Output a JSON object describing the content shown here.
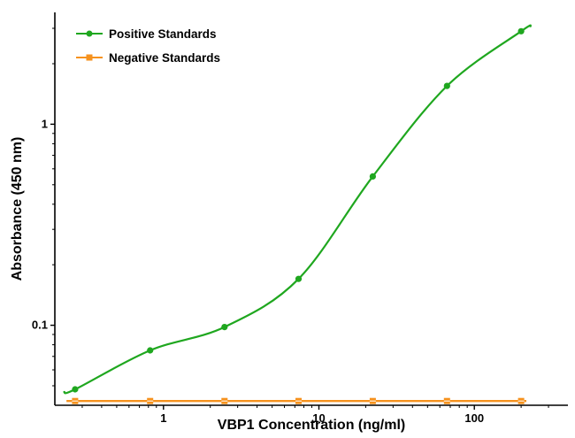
{
  "chart_data": {
    "type": "line",
    "title": "",
    "xlabel": "VBP1 Concentration (ng/ml)",
    "ylabel": "Absorbance (450 nm)",
    "x_scale": "log",
    "y_scale": "log",
    "xlim": [
      0.2,
      400
    ],
    "ylim": [
      0.04,
      3.6
    ],
    "x_ticks": [
      1,
      10,
      100
    ],
    "y_ticks": [
      0.1,
      1
    ],
    "grid": false,
    "legend_position": "top-left",
    "x": [
      0.27,
      0.82,
      2.47,
      7.4,
      22.2,
      66.7,
      200
    ],
    "series": [
      {
        "name": "Positive Standards",
        "color": "#1fa71f",
        "marker": "circle",
        "values": [
          0.048,
          0.075,
          0.098,
          0.17,
          0.55,
          1.55,
          2.9
        ]
      },
      {
        "name": "Negative Standards",
        "color": "#f6921e",
        "marker": "square",
        "values": [
          0.042,
          0.042,
          0.042,
          0.042,
          0.042,
          0.042,
          0.042
        ]
      }
    ]
  }
}
